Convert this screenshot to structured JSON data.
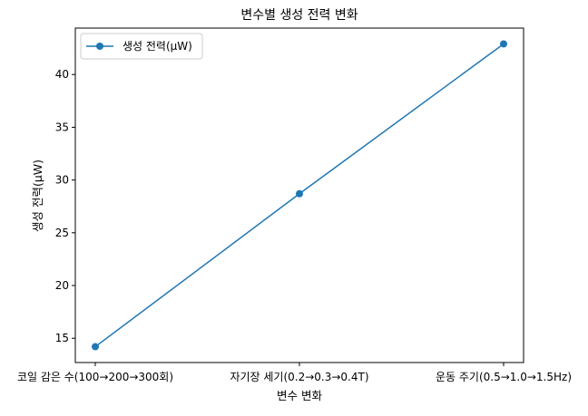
{
  "chart_data": {
    "type": "line",
    "title": "변수별 생성 전력 변화",
    "xlabel": "변수 변화",
    "ylabel": "생성 전력(μW)",
    "categories": [
      "코일 감은 수(100→200→300회)",
      "자기장 세기(0.2→0.3→0.4T)",
      "운동 주기(0.5→1.0→1.5Hz)"
    ],
    "series": [
      {
        "name": "생성 전력(μW)",
        "values": [
          14.2,
          28.7,
          42.9
        ],
        "color": "#1f77b4",
        "marker": "circle"
      }
    ],
    "ylim": [
      12.7,
      44.4
    ],
    "yticks": [
      15,
      20,
      25,
      30,
      35,
      40
    ],
    "grid": false,
    "legend": "upper-left"
  }
}
